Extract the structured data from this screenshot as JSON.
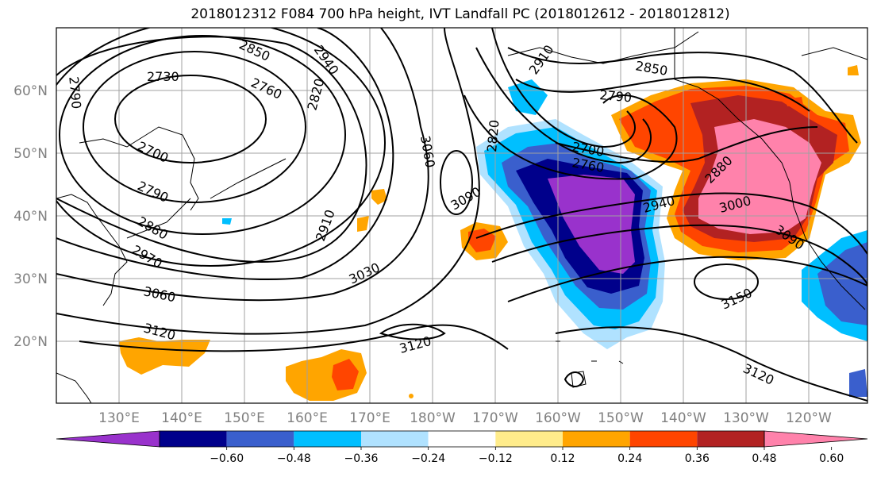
{
  "title": "2018012312 F084 700 hPa height, IVT Landfall PC (2018012612 - 2018012812)",
  "lat_labels": [
    "60°N",
    "50°N",
    "40°N",
    "30°N",
    "20°N"
  ],
  "lon_labels": [
    "130°E",
    "140°E",
    "150°E",
    "160°E",
    "170°E",
    "180°W",
    "170°W",
    "160°W",
    "150°W",
    "140°W",
    "130°W",
    "120°W"
  ],
  "colorbar": {
    "tick_labels": [
      "−0.60",
      "−0.48",
      "−0.36",
      "−0.24",
      "−0.12",
      "0.12",
      "0.24",
      "0.36",
      "0.48",
      "0.60"
    ],
    "colors": [
      "#9932cc",
      "#00008b",
      "#3a5fcd",
      "#00bfff",
      "#b0e2ff",
      "#ffffff",
      "#ffec8b",
      "#ffa500",
      "#ff4500",
      "#b22222",
      "#ff82ab"
    ]
  },
  "contour_labels": [
    "2790",
    "2730",
    "2850",
    "2940",
    "2760",
    "2700",
    "2820",
    "2790",
    "2880",
    "2970",
    "3060",
    "2910",
    "3030",
    "3120",
    "3060",
    "3090",
    "3120",
    "2910",
    "2850",
    "2790",
    "2820",
    "2700",
    "2760",
    "2880",
    "3000",
    "2940",
    "3090",
    "3150",
    "3120"
  ]
}
